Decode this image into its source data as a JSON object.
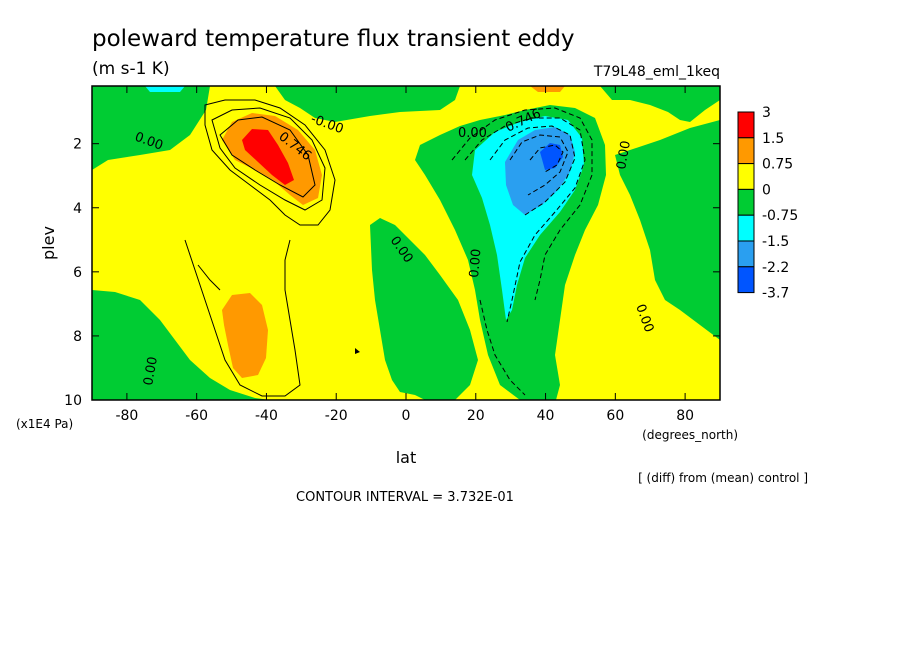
{
  "title": "poleward temperature flux transient eddy",
  "units": "(m s-1 K)",
  "run_label": "T79L48_eml_1keq",
  "chart_data": {
    "type": "heatmap",
    "title": "poleward temperature flux transient eddy",
    "units": "(m s-1 K)",
    "xlabel": "lat",
    "xunits": "(degrees_north)",
    "ylabel": "plev",
    "yunits": "(x1E4 Pa)",
    "xlim": [
      -90,
      90
    ],
    "ylim": [
      10,
      0.2
    ],
    "xticks": [
      -80,
      -60,
      -40,
      -20,
      0,
      20,
      40,
      60,
      80
    ],
    "xtick_labels": [
      "-80",
      "-60",
      "-40",
      "-20",
      "0",
      "20",
      "40",
      "60",
      "80"
    ],
    "yticks": [
      2,
      4,
      6,
      8,
      10
    ],
    "ytick_labels": [
      "2",
      "4",
      "6",
      "8",
      "10"
    ],
    "colorbar": {
      "levels": [
        "3",
        "1.5",
        "0.75",
        "0",
        "-0.75",
        "-1.5",
        "-2.2",
        "-3.7"
      ],
      "colors": [
        "#ff0000",
        "#ff9900",
        "#ffff00",
        "#00cc33",
        "#00ffff",
        "#2a9ff0",
        "#0055ff"
      ]
    },
    "contour_labels": [
      "0.746",
      "0.746",
      "-0.00",
      "0.00",
      "0.00",
      "0.00",
      "0.00",
      "0.00",
      "0.00",
      "0.00"
    ],
    "features": [
      {
        "lat": -38,
        "plev": 2.6,
        "value": 2.2
      },
      {
        "lat": -47,
        "plev": 8.3,
        "value": 1.1
      },
      {
        "lat": 37,
        "plev": 2.6,
        "value": -2.6
      },
      {
        "lat": 30,
        "plev": 5.5,
        "value": -1.0
      },
      {
        "lat": 85,
        "plev": 7.0,
        "value": 0.1
      }
    ],
    "contour_interval_text": "CONTOUR INTERVAL = 3.732E-01",
    "diff_note": "[ (diff) from (mean) control ]"
  }
}
